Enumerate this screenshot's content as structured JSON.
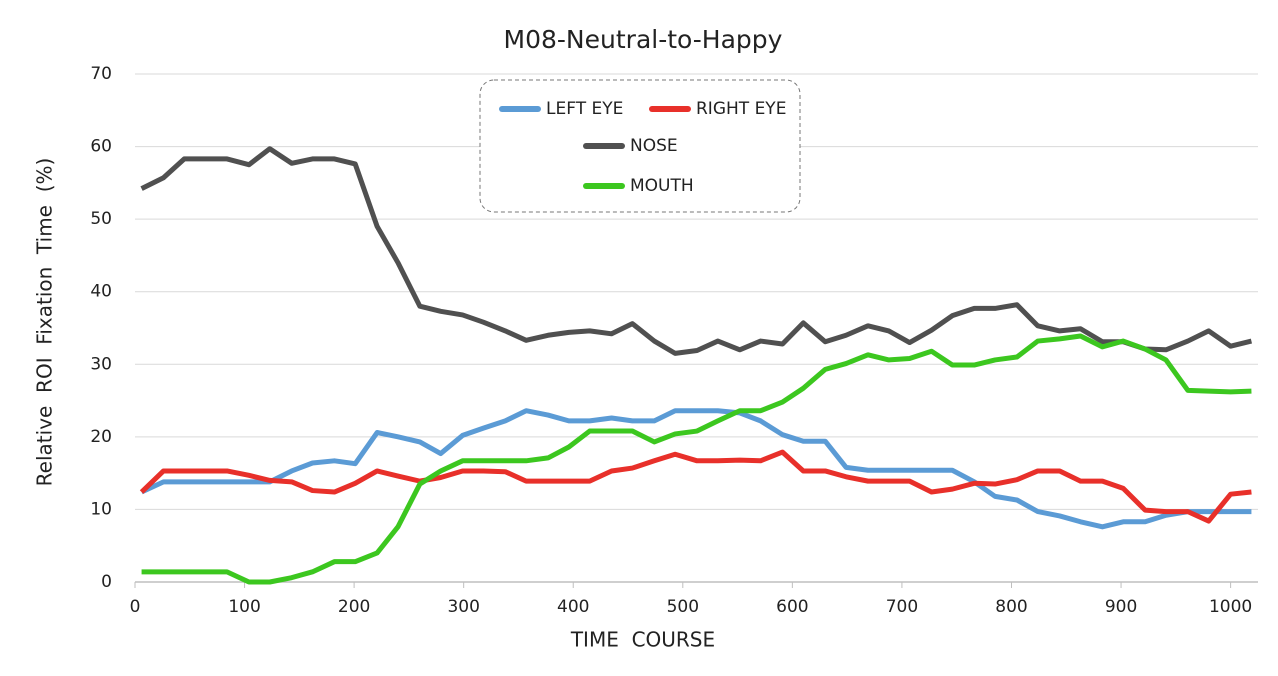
{
  "chart_data": {
    "type": "line",
    "title": "M08-Neutral-to-Happy",
    "x_label": "TIME  COURSE",
    "y_label": "Relative  ROI  Fixation  Time  (%)",
    "x": [
      6,
      26,
      45,
      65,
      84,
      104,
      123,
      143,
      162,
      182,
      201,
      221,
      240,
      260,
      279,
      299,
      318,
      338,
      357,
      377,
      396,
      415,
      435,
      454,
      474,
      493,
      513,
      532,
      552,
      571,
      591,
      610,
      630,
      649,
      669,
      688,
      707,
      727,
      746,
      766,
      785,
      805,
      824,
      844,
      863,
      883,
      902,
      922,
      941,
      961,
      980,
      1000,
      1019
    ],
    "series": [
      {
        "name": "LEFT EYE",
        "color": "#5b9bd5",
        "values": [
          12.4,
          13.8,
          13.8,
          13.8,
          13.8,
          13.8,
          13.8,
          15.3,
          16.4,
          16.7,
          16.3,
          20.6,
          20,
          19.3,
          17.7,
          20.2,
          21.2,
          22.2,
          23.6,
          23,
          22.2,
          22.2,
          22.6,
          22.2,
          22.2,
          23.6,
          23.6,
          23.6,
          23.3,
          22.2,
          20.3,
          19.4,
          19.4,
          15.8,
          15.4,
          15.4,
          15.4,
          15.4,
          15.4,
          13.8,
          11.8,
          11.3,
          9.7,
          9.1,
          8.3,
          7.6,
          8.3,
          8.3,
          9.2,
          9.7,
          9.7,
          9.7,
          9.7
        ]
      },
      {
        "name": "RIGHT EYE",
        "color": "#e8302a",
        "values": [
          12.4,
          15.3,
          15.3,
          15.3,
          15.3,
          14.7,
          14,
          13.8,
          12.6,
          12.4,
          13.6,
          15.3,
          14.6,
          13.9,
          14.4,
          15.3,
          15.3,
          15.2,
          13.9,
          13.9,
          13.9,
          13.9,
          15.3,
          15.7,
          16.7,
          17.6,
          16.7,
          16.7,
          16.8,
          16.7,
          17.9,
          15.3,
          15.3,
          14.5,
          13.9,
          13.9,
          13.9,
          12.4,
          12.8,
          13.6,
          13.5,
          14.1,
          15.3,
          15.3,
          13.9,
          13.9,
          12.9,
          9.9,
          9.7,
          9.7,
          8.4,
          12.1,
          12.4
        ]
      },
      {
        "name": "NOSE",
        "color": "#505050",
        "values": [
          54.2,
          55.7,
          58.3,
          58.3,
          58.3,
          57.5,
          59.7,
          57.7,
          58.3,
          58.3,
          57.6,
          49,
          44,
          38,
          37.3,
          36.8,
          35.8,
          34.6,
          33.3,
          34,
          34.4,
          34.6,
          34.2,
          35.6,
          33.2,
          31.5,
          31.9,
          33.2,
          32,
          33.2,
          32.8,
          35.7,
          33.1,
          34,
          35.3,
          34.6,
          33,
          34.7,
          36.7,
          37.7,
          37.7,
          38.2,
          35.3,
          34.6,
          34.9,
          33.1,
          33.1,
          32.1,
          32,
          33.2,
          34.6,
          32.5,
          33.2
        ]
      },
      {
        "name": "MOUTH",
        "color": "#3cc71f",
        "values": [
          1.4,
          1.4,
          1.4,
          1.4,
          1.4,
          0,
          0,
          0.6,
          1.4,
          2.8,
          2.8,
          4,
          7.6,
          13.5,
          15.3,
          16.7,
          16.7,
          16.7,
          16.7,
          17.1,
          18.6,
          20.8,
          20.8,
          20.8,
          19.3,
          20.4,
          20.8,
          22.2,
          23.6,
          23.6,
          24.8,
          26.7,
          29.3,
          30.1,
          31.3,
          30.6,
          30.8,
          31.8,
          29.9,
          29.9,
          30.6,
          31,
          33.2,
          33.5,
          33.9,
          32.4,
          33.2,
          32.1,
          30.6,
          26.4,
          26.3,
          26.2,
          26.3
        ]
      }
    ],
    "xlim": [
      0,
      1025
    ],
    "xticks": [
      0,
      100,
      200,
      300,
      400,
      500,
      600,
      700,
      800,
      900,
      1000
    ],
    "ylim": [
      0,
      70
    ],
    "yticks": [
      0,
      10,
      20,
      30,
      40,
      50,
      60,
      70
    ],
    "grid": true
  }
}
